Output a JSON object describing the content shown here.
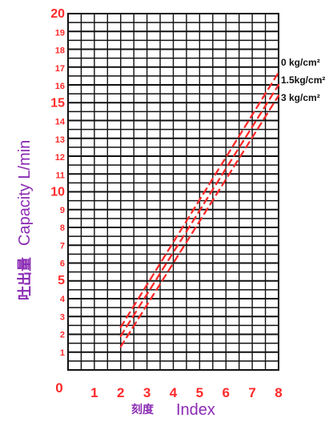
{
  "chart_data": {
    "type": "line",
    "xlabel": "刻度 Index",
    "ylabel": "吐出量 Capacity L/min",
    "xlim": [
      0,
      8
    ],
    "ylim": [
      0,
      20
    ],
    "x_tick_labels": [
      "1",
      "2",
      "3",
      "4",
      "5",
      "6",
      "7",
      "8"
    ],
    "y_tick_labels": [
      "1",
      "2",
      "3",
      "4",
      "5",
      "6",
      "7",
      "8",
      "9",
      "10",
      "11",
      "12",
      "13",
      "14",
      "15",
      "16",
      "17",
      "18",
      "19",
      "20"
    ],
    "y_zero_label": "0",
    "y_minor_step": 0.5,
    "grid": true,
    "line_style": "dashed",
    "series_color": "#ff2a2a",
    "series": [
      {
        "name": "0 kg/cm²",
        "x": [
          2,
          8
        ],
        "y": [
          2.4,
          16.7
        ]
      },
      {
        "name": "1.5kg/cm²",
        "x": [
          2,
          8
        ],
        "y": [
          1.9,
          16.0
        ]
      },
      {
        "name": "3 kg/cm²",
        "x": [
          2,
          8
        ],
        "y": [
          1.3,
          15.4
        ]
      }
    ]
  },
  "labels": {
    "x_axis_cjk": "刻度",
    "x_axis_en": "Index",
    "y_axis_cjk": "吐出量",
    "y_axis_en": "Capacity L/min"
  }
}
